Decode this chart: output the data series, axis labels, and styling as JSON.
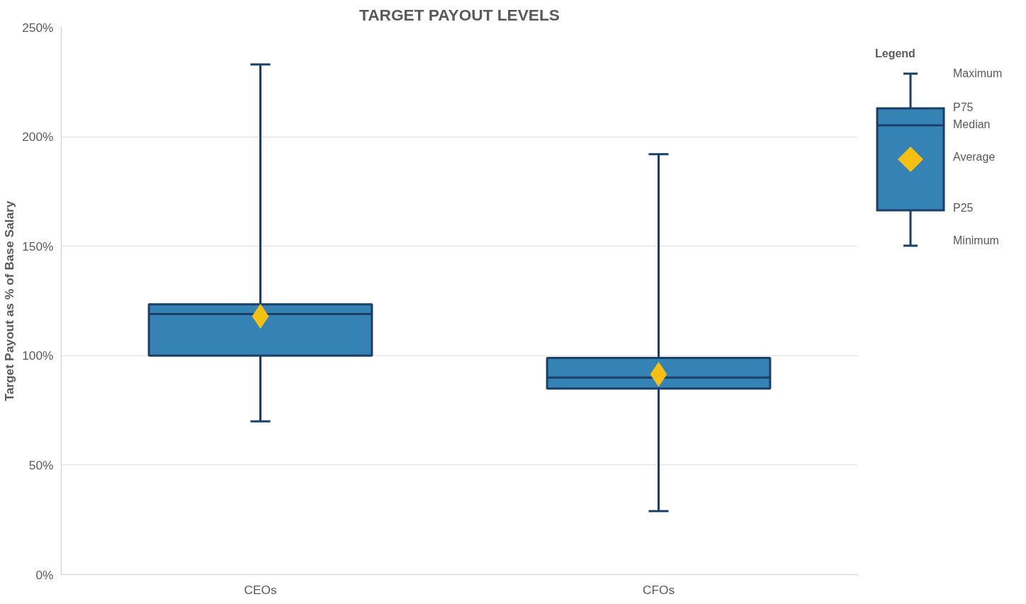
{
  "chart_data": {
    "type": "box",
    "title": "TARGET PAYOUT LEVELS",
    "ylabel": "Target Payout as % of Base Salary",
    "categories": [
      "CEOs",
      "CFOs"
    ],
    "boxes": [
      {
        "low": 70,
        "q1": 100,
        "median": 119,
        "q3": 123.5,
        "high": 233,
        "mean": 118
      },
      {
        "low": 29,
        "q1": 85,
        "median": 90,
        "q3": 99,
        "high": 192,
        "mean": 91.5
      }
    ],
    "color": "#3582b4",
    "marker": "diamond",
    "ylim": [
      0,
      250
    ],
    "yticks": [
      {
        "value": 0,
        "label": "0%"
      },
      {
        "value": 50,
        "label": "50%"
      },
      {
        "value": 100,
        "label": "100%"
      },
      {
        "value": 150,
        "label": "150%"
      },
      {
        "value": 200,
        "label": "200%"
      },
      {
        "value": 250,
        "label": "250%"
      }
    ],
    "grid": "y",
    "legend_title": "Legend",
    "annotations": [
      "Maximum",
      "P75",
      "Median",
      "Average",
      "P25",
      "Minimum"
    ]
  }
}
